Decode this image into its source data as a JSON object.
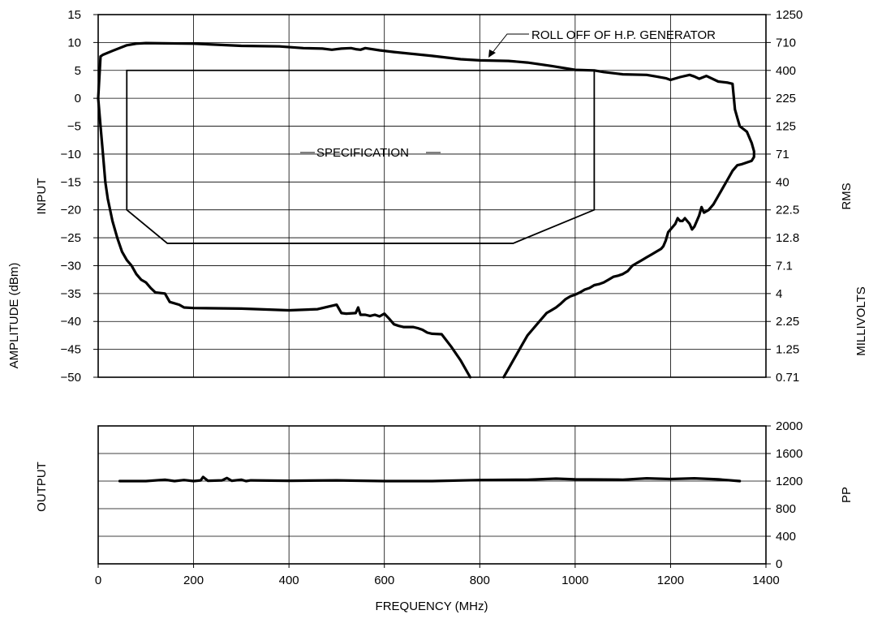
{
  "chart_data": [
    {
      "type": "line",
      "panel": "input",
      "xlabel": "FREQUENCY (MHz)",
      "xlim": [
        0,
        1400
      ],
      "x_ticks": [
        0,
        200,
        400,
        600,
        800,
        1000,
        1200,
        1400
      ],
      "ylabel_left_top": "INPUT",
      "ylabel_left": "AMPLITUDE (dBm)",
      "ylim": [
        -50,
        15
      ],
      "y_ticks": [
        15,
        10,
        5,
        0,
        -5,
        -10,
        -15,
        -20,
        -25,
        -30,
        -35,
        -40,
        -45,
        -50
      ],
      "ylabel_right_top": "RMS",
      "ylabel_right": "MILLIVOLTS",
      "right_ticks": [
        "1250",
        "710",
        "400",
        "225",
        "125",
        "71",
        "40",
        "22.5",
        "12.8",
        "7.1",
        "4",
        "2.25",
        "1.25",
        "0.71"
      ],
      "grid": true,
      "annotations": [
        {
          "text": "ROLL OFF OF H.P. GENERATOR"
        },
        {
          "text": "SPECIFICATION"
        }
      ],
      "series": [
        {
          "role": "upper-envelope",
          "x": [
            0,
            5,
            10,
            30,
            60,
            80,
            100,
            200,
            300,
            380,
            430,
            470,
            490,
            510,
            530,
            540,
            550,
            560,
            590,
            620,
            700,
            760,
            800,
            860,
            900,
            950,
            1000,
            1040,
            1060,
            1100,
            1150,
            1170,
            1190,
            1200,
            1220,
            1240,
            1250,
            1260,
            1275,
            1300,
            1320,
            1330,
            1335,
            1340,
            1345,
            1360,
            1370,
            1375,
            1375,
            1370,
            1350,
            1340,
            1330,
            1320,
            1310,
            1300,
            1290,
            1280,
            1270,
            1265,
            1260,
            1255,
            1250,
            1245,
            1240,
            1230,
            1225,
            1220,
            1215,
            1210,
            1200,
            1195,
            1190,
            1185,
            1180,
            1170,
            1160,
            1150,
            1140,
            1130,
            1120,
            1110,
            1100,
            1090,
            1080,
            1070,
            1060,
            1050,
            1040,
            1030,
            1020,
            1010,
            1000,
            990,
            980,
            970,
            960,
            950,
            940,
            930,
            920,
            910,
            900,
            890,
            880,
            870,
            860,
            850
          ],
          "y": [
            0,
            7.5,
            7.8,
            8.5,
            9.5,
            9.8,
            9.9,
            9.8,
            9.4,
            9.3,
            9.0,
            8.9,
            8.7,
            8.9,
            9.0,
            8.8,
            8.7,
            9.0,
            8.6,
            8.3,
            7.6,
            7.0,
            6.8,
            6.7,
            6.4,
            5.8,
            5.1,
            5.0,
            4.7,
            4.3,
            4.2,
            3.9,
            3.6,
            3.3,
            3.8,
            4.2,
            3.9,
            3.5,
            4.0,
            3.0,
            2.8,
            2.6,
            -2.0,
            -3.5,
            -5.0,
            -6.0,
            -8.0,
            -9.5,
            -10.5,
            -11.2,
            -11.8,
            -12.0,
            -13.0,
            -14.5,
            -16.0,
            -17.5,
            -19.0,
            -20.0,
            -20.5,
            -19.5,
            -21.0,
            -22.0,
            -23.0,
            -23.5,
            -22.5,
            -21.5,
            -22.0,
            -22.0,
            -21.5,
            -22.5,
            -23.5,
            -24.0,
            -25.5,
            -26.5,
            -27.0,
            -27.5,
            -28.0,
            -28.5,
            -29.0,
            -29.5,
            -30.0,
            -31.0,
            -31.5,
            -31.8,
            -32.0,
            -32.5,
            -33.0,
            -33.3,
            -33.5,
            -34.0,
            -34.3,
            -34.8,
            -35.2,
            -35.5,
            -36.0,
            -36.8,
            -37.5,
            -38.0,
            -38.5,
            -39.5,
            -40.5,
            -41.5,
            -42.5,
            -44.0,
            -45.5,
            -47.0,
            -48.5,
            -50.0
          ]
        },
        {
          "role": "lower-envelope",
          "x": [
            0,
            5,
            10,
            15,
            20,
            30,
            40,
            50,
            60,
            70,
            80,
            90,
            100,
            110,
            120,
            140,
            150,
            170,
            180,
            200,
            300,
            400,
            460,
            500,
            510,
            520,
            540,
            545,
            550,
            560,
            570,
            580,
            590,
            600,
            610,
            620,
            630,
            640,
            650,
            660,
            670,
            680,
            690,
            700,
            720,
            740,
            760,
            780
          ],
          "y": [
            0,
            -5.0,
            -10.0,
            -15.0,
            -18.0,
            -22.0,
            -25.0,
            -27.5,
            -29.0,
            -30.0,
            -31.5,
            -32.5,
            -33.0,
            -34.0,
            -34.8,
            -35.0,
            -36.5,
            -37.0,
            -37.5,
            -37.6,
            -37.7,
            -38.0,
            -37.8,
            -37.0,
            -38.5,
            -38.6,
            -38.5,
            -37.5,
            -38.8,
            -38.8,
            -39.0,
            -38.8,
            -39.1,
            -38.6,
            -39.5,
            -40.5,
            -40.8,
            -41.0,
            -41.0,
            -41.0,
            -41.2,
            -41.5,
            -42.0,
            -42.2,
            -42.3,
            -44.5,
            -47.0,
            -50.0
          ]
        },
        {
          "role": "specification",
          "x": [
            60,
            60,
            1040,
            1040,
            870,
            145,
            60
          ],
          "y": [
            5,
            -20,
            5,
            -20,
            -26,
            -26,
            -20
          ]
        }
      ]
    },
    {
      "type": "line",
      "panel": "output",
      "xlabel": "FREQUENCY (MHz)",
      "xlim": [
        0,
        1400
      ],
      "x_ticks": [
        0,
        200,
        400,
        600,
        800,
        1000,
        1200,
        1400
      ],
      "ylabel_left": "OUTPUT",
      "ylabel_right": "PP",
      "ylim": [
        0,
        2000
      ],
      "y_ticks": [
        2000,
        1600,
        1200,
        800,
        400,
        0
      ],
      "grid": true,
      "series": [
        {
          "role": "output-level",
          "x": [
            45,
            100,
            140,
            160,
            180,
            200,
            215,
            220,
            230,
            260,
            270,
            280,
            300,
            310,
            320,
            400,
            500,
            600,
            700,
            800,
            900,
            960,
            1000,
            1100,
            1150,
            1200,
            1250,
            1300,
            1345
          ],
          "y": [
            1200,
            1200,
            1220,
            1200,
            1215,
            1200,
            1210,
            1260,
            1205,
            1210,
            1245,
            1205,
            1220,
            1200,
            1210,
            1205,
            1210,
            1200,
            1200,
            1215,
            1220,
            1235,
            1225,
            1220,
            1240,
            1230,
            1240,
            1225,
            1200
          ]
        }
      ]
    }
  ]
}
